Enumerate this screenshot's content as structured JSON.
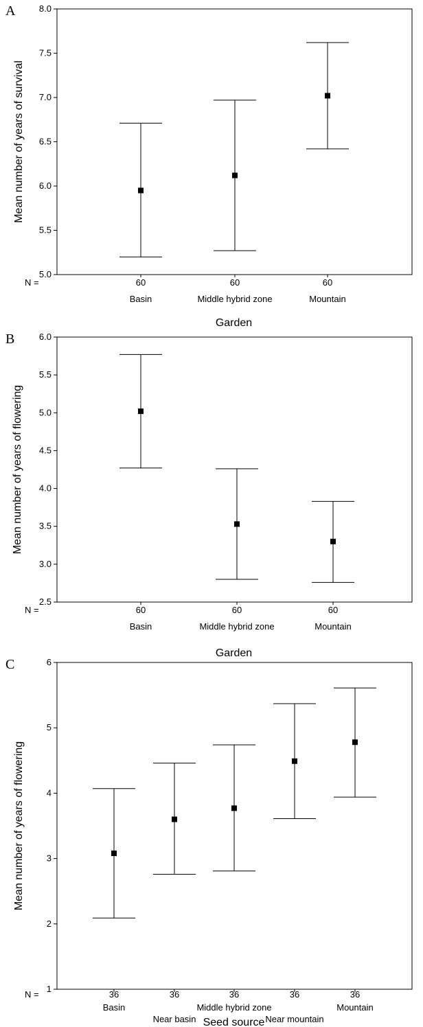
{
  "chart_data": [
    {
      "panel": "A",
      "type": "scatter",
      "error_bars": true,
      "ylabel": "Mean number of years of survival",
      "xlabel": "Garden",
      "n_prefix": "N =",
      "ylim": [
        5.0,
        8.0
      ],
      "yticks": [
        "5.0",
        "5.5",
        "6.0",
        "6.5",
        "7.0",
        "7.5",
        "8.0"
      ],
      "categories": [
        "Basin",
        "Middle hybrid zone",
        "Mountain"
      ],
      "n": [
        "60",
        "60",
        "60"
      ],
      "mean": [
        5.95,
        6.12,
        7.02
      ],
      "lower": [
        5.2,
        5.27,
        6.42
      ],
      "upper": [
        6.71,
        6.97,
        7.62
      ]
    },
    {
      "panel": "B",
      "type": "scatter",
      "error_bars": true,
      "ylabel": "Mean number of years of flowering",
      "xlabel": "Garden",
      "n_prefix": "N =",
      "ylim": [
        2.5,
        6.0
      ],
      "yticks": [
        "2.5",
        "3.0",
        "3.5",
        "4.0",
        "4.5",
        "5.0",
        "5.5",
        "6.0"
      ],
      "categories": [
        "Basin",
        "Middle hybrid zone",
        "Mountain"
      ],
      "n": [
        "60",
        "60",
        "60"
      ],
      "mean": [
        5.02,
        3.53,
        3.3
      ],
      "lower": [
        4.27,
        2.8,
        2.76
      ],
      "upper": [
        5.77,
        4.26,
        3.83
      ]
    },
    {
      "panel": "C",
      "type": "scatter",
      "error_bars": true,
      "ylabel": "Mean number of years of flowering",
      "xlabel": "Seed source",
      "n_prefix": "N =",
      "ylim": [
        1,
        6
      ],
      "yticks": [
        "1",
        "2",
        "3",
        "4",
        "5",
        "6"
      ],
      "categories": [
        "Basin",
        "Near basin",
        "Middle hybrid zone",
        "Near mountain",
        "Mountain"
      ],
      "n": [
        "36",
        "36",
        "36",
        "36",
        "36"
      ],
      "mean": [
        3.08,
        3.6,
        3.77,
        4.49,
        4.78
      ],
      "lower": [
        2.09,
        2.76,
        2.81,
        3.61,
        3.94
      ],
      "upper": [
        4.07,
        4.46,
        4.74,
        5.37,
        5.61
      ]
    }
  ]
}
